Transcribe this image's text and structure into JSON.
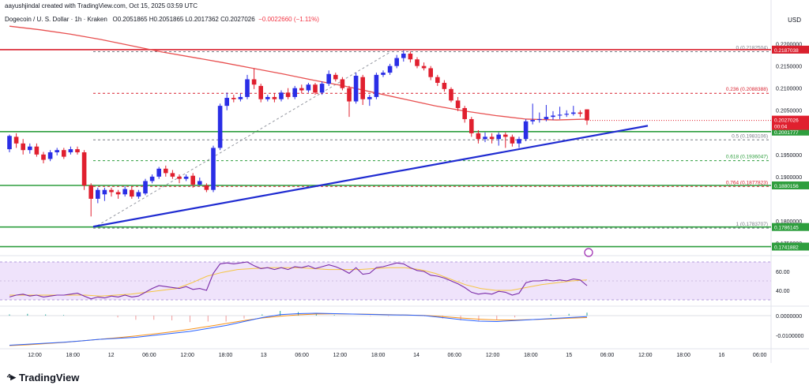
{
  "credit": "aayushjindal created with TradingView.com, Oct 15, 2025 03:59 UTC",
  "header": {
    "symbol": "Dogecoin / U. S. Dollar · 1h · Kraken",
    "ohlc": "O0.2051865 H0.2051865 L0.2017362 C0.2027026",
    "change": "−0.0022660 (−1.11%)"
  },
  "currency": "USD",
  "brand": "TradingView",
  "colors": {
    "up": "#2a2ee6",
    "down": "#e0202f",
    "ma": "#e85050",
    "trendline": "#1f2bd1",
    "support": "#2e9e3e",
    "resistance": "#d9202e",
    "rsi": "#7b2ca8",
    "rsi_band": "#efe3fb"
  },
  "chart_data": {
    "type": "candlestick",
    "price_axis": {
      "range": [
        0.1725,
        0.2235
      ],
      "ticks": [
        "0.2200000",
        "0.2150000",
        "0.2100000",
        "0.2050000",
        "0.1950000",
        "0.1900000",
        "0.1800000",
        "0.1750000"
      ]
    },
    "time_ticks": [
      "12:00",
      "18:00",
      "12",
      "06:00",
      "12:00",
      "18:00",
      "13",
      "06:00",
      "12:00",
      "18:00",
      "14",
      "06:00",
      "12:00",
      "18:00",
      "15",
      "06:00",
      "12:00",
      "18:00",
      "16",
      "06:00"
    ],
    "candles": [
      [
        0.1962,
        0.1992,
        0.1995,
        0.1955
      ],
      [
        0.199,
        0.1975,
        0.1998,
        0.1965
      ],
      [
        0.1975,
        0.196,
        0.1985,
        0.195
      ],
      [
        0.196,
        0.1968,
        0.1975,
        0.1952
      ],
      [
        0.1968,
        0.195,
        0.1975,
        0.1945
      ],
      [
        0.195,
        0.1938,
        0.1956,
        0.193
      ],
      [
        0.194,
        0.1955,
        0.196,
        0.1935
      ],
      [
        0.1955,
        0.196,
        0.1965,
        0.1948
      ],
      [
        0.196,
        0.1945,
        0.1965,
        0.194
      ],
      [
        0.1955,
        0.1962,
        0.1968,
        0.195
      ],
      [
        0.1962,
        0.1955,
        0.1968,
        0.195
      ],
      [
        0.1955,
        0.188,
        0.196,
        0.187
      ],
      [
        0.188,
        0.185,
        0.1885,
        0.181
      ],
      [
        0.185,
        0.187,
        0.1875,
        0.184
      ],
      [
        0.186,
        0.187,
        0.1875,
        0.1845
      ],
      [
        0.187,
        0.1865,
        0.1875,
        0.1855
      ],
      [
        0.1865,
        0.186,
        0.187,
        0.185
      ],
      [
        0.186,
        0.1872,
        0.1878,
        0.1855
      ],
      [
        0.187,
        0.1855,
        0.1878,
        0.185
      ],
      [
        0.1855,
        0.1865,
        0.187,
        0.185
      ],
      [
        0.1862,
        0.189,
        0.1895,
        0.1858
      ],
      [
        0.189,
        0.19,
        0.1905,
        0.1885
      ],
      [
        0.19,
        0.1918,
        0.1922,
        0.1895
      ],
      [
        0.1918,
        0.1908,
        0.1925,
        0.19
      ],
      [
        0.1908,
        0.19,
        0.1915,
        0.1895
      ],
      [
        0.19,
        0.1895,
        0.1905,
        0.1885
      ],
      [
        0.1895,
        0.19,
        0.1905,
        0.189
      ],
      [
        0.1902,
        0.1882,
        0.1908,
        0.1875
      ],
      [
        0.1882,
        0.189,
        0.1898,
        0.188
      ],
      [
        0.188,
        0.187,
        0.1885,
        0.1865
      ],
      [
        0.187,
        0.1965,
        0.197,
        0.1865
      ],
      [
        0.1965,
        0.206,
        0.2065,
        0.196
      ],
      [
        0.206,
        0.2078,
        0.209,
        0.205
      ],
      [
        0.2078,
        0.2075,
        0.2085,
        0.2068
      ],
      [
        0.2075,
        0.208,
        0.2088,
        0.207
      ],
      [
        0.208,
        0.212,
        0.213,
        0.2075
      ],
      [
        0.212,
        0.2108,
        0.2145,
        0.2098
      ],
      [
        0.2105,
        0.2075,
        0.211,
        0.2068
      ],
      [
        0.2075,
        0.208,
        0.2085,
        0.207
      ],
      [
        0.208,
        0.2075,
        0.2088,
        0.2068
      ],
      [
        0.2075,
        0.209,
        0.2095,
        0.207
      ],
      [
        0.209,
        0.208,
        0.21,
        0.2075
      ],
      [
        0.208,
        0.21,
        0.2105,
        0.2075
      ],
      [
        0.21,
        0.2095,
        0.2108,
        0.2088
      ],
      [
        0.2095,
        0.2108,
        0.2112,
        0.209
      ],
      [
        0.2108,
        0.209,
        0.2112,
        0.2085
      ],
      [
        0.209,
        0.211,
        0.2115,
        0.2085
      ],
      [
        0.211,
        0.2132,
        0.214,
        0.2105
      ],
      [
        0.213,
        0.212,
        0.2135,
        0.2115
      ],
      [
        0.212,
        0.21,
        0.2125,
        0.2095
      ],
      [
        0.21,
        0.207,
        0.2105,
        0.2035
      ],
      [
        0.207,
        0.2128,
        0.2135,
        0.2065
      ],
      [
        0.2125,
        0.2075,
        0.213,
        0.2062
      ],
      [
        0.2075,
        0.208,
        0.2085,
        0.206
      ],
      [
        0.208,
        0.213,
        0.2135,
        0.2075
      ],
      [
        0.213,
        0.2135,
        0.214,
        0.2125
      ],
      [
        0.2135,
        0.215,
        0.2155,
        0.213
      ],
      [
        0.215,
        0.2168,
        0.2175,
        0.2145
      ],
      [
        0.2168,
        0.2178,
        0.2185,
        0.216
      ],
      [
        0.2178,
        0.2165,
        0.2183,
        0.2158
      ],
      [
        0.2165,
        0.215,
        0.217,
        0.2145
      ],
      [
        0.215,
        0.2145,
        0.2158,
        0.214
      ],
      [
        0.2145,
        0.2125,
        0.215,
        0.2118
      ],
      [
        0.2125,
        0.2112,
        0.213,
        0.2105
      ],
      [
        0.2112,
        0.2098,
        0.2118,
        0.2092
      ],
      [
        0.2098,
        0.2072,
        0.2102,
        0.2068
      ],
      [
        0.2072,
        0.2055,
        0.208,
        0.2048
      ],
      [
        0.2055,
        0.203,
        0.206,
        0.2022
      ],
      [
        0.203,
        0.1998,
        0.2035,
        0.199
      ],
      [
        0.1998,
        0.1985,
        0.2005,
        0.1975
      ],
      [
        0.1985,
        0.199,
        0.2,
        0.1978
      ],
      [
        0.199,
        0.1985,
        0.1998,
        0.1975
      ],
      [
        0.1985,
        0.1995,
        0.2,
        0.197
      ],
      [
        0.1995,
        0.199,
        0.2,
        0.1965
      ],
      [
        0.199,
        0.1975,
        0.1995,
        0.1968
      ],
      [
        0.1975,
        0.1985,
        0.199,
        0.1965
      ],
      [
        0.1985,
        0.2025,
        0.203,
        0.198
      ],
      [
        0.2025,
        0.2028,
        0.2065,
        0.2018
      ],
      [
        0.2028,
        0.203,
        0.2045,
        0.2022
      ],
      [
        0.203,
        0.2035,
        0.2062,
        0.2025
      ],
      [
        0.2035,
        0.2038,
        0.2048,
        0.2028
      ],
      [
        0.2038,
        0.204,
        0.2058,
        0.203
      ],
      [
        0.204,
        0.2042,
        0.205,
        0.2035
      ],
      [
        0.2042,
        0.2045,
        0.206,
        0.2038
      ],
      [
        0.2045,
        0.2042,
        0.205,
        0.2035
      ],
      [
        0.2052,
        0.2027,
        0.2052,
        0.2017
      ]
    ],
    "ma_line": [
      0.224,
      0.2232,
      0.2222,
      0.221,
      0.2196,
      0.2182,
      0.217,
      0.2158,
      0.2145,
      0.2132,
      0.2118,
      0.2105,
      0.209,
      0.2075,
      0.206,
      0.2048,
      0.2038,
      0.203,
      0.2028,
      0.203
    ],
    "horizontal_levels": [
      {
        "value": 0.2187038,
        "label": "0.2187038",
        "kind": "resistance"
      },
      {
        "value": 0.2001777,
        "label": "0.2001777",
        "kind": "support"
      },
      {
        "value": 0.1880156,
        "label": "0.1880156",
        "kind": "support"
      },
      {
        "value": 0.1786145,
        "label": "0.1786145",
        "kind": "support"
      },
      {
        "value": 0.1741882,
        "label": "0.1741882",
        "kind": "support"
      }
    ],
    "current_price": {
      "value": 0.2027026,
      "label": "0.2027026",
      "timer": "00:04"
    },
    "fib_levels": [
      {
        "ratio": "0",
        "value": 0.2182504,
        "label": "0 (0.2182504)"
      },
      {
        "ratio": "0.236",
        "value": 0.2088388,
        "label": "0.236 (0.2088388)"
      },
      {
        "ratio": "0.5",
        "value": 0.1983106,
        "label": "0.5 (0.1983106)"
      },
      {
        "ratio": "0.618",
        "value": 0.1936047,
        "label": "0.618 (0.1936047)"
      },
      {
        "ratio": "0.764",
        "value": 0.1877823,
        "label": "0.764 (0.1877823)"
      },
      {
        "ratio": "1",
        "value": 0.1783707,
        "label": "1 (0.1783707)"
      }
    ],
    "trendline": {
      "from": 0.1787,
      "to": 0.2015
    },
    "rsi": {
      "ticks": [
        "60.00",
        "40.00"
      ],
      "band": [
        30,
        70
      ],
      "values": [
        33,
        35,
        36,
        34,
        35,
        33,
        34,
        35,
        35,
        36,
        37,
        34,
        31,
        33,
        32,
        34,
        33,
        35,
        33,
        34,
        38,
        42,
        45,
        44,
        43,
        42,
        44,
        41,
        42,
        40,
        58,
        68,
        69,
        68,
        69,
        70,
        66,
        63,
        64,
        62,
        64,
        62,
        65,
        64,
        66,
        63,
        65,
        67,
        65,
        62,
        58,
        64,
        57,
        58,
        64,
        65,
        67,
        69,
        68,
        64,
        61,
        60,
        56,
        55,
        53,
        50,
        47,
        43,
        38,
        36,
        37,
        36,
        39,
        38,
        35,
        37,
        48,
        50,
        50,
        51,
        50,
        51,
        50,
        52,
        51,
        45
      ],
      "signal": [
        35,
        35,
        35,
        35,
        35,
        35,
        34,
        35,
        36,
        38,
        40,
        42,
        48,
        55,
        59,
        62,
        63,
        64,
        64,
        64,
        63,
        62,
        62,
        62,
        63,
        64,
        64,
        62,
        58,
        52,
        46,
        42,
        40,
        40,
        43,
        46,
        48,
        50,
        51
      ]
    },
    "macd": {
      "ticks": [
        "0.0000000",
        "-0.0100000"
      ],
      "macd": [
        -0.015,
        -0.0145,
        -0.014,
        -0.0135,
        -0.0128,
        -0.012,
        -0.0115,
        -0.011,
        -0.01,
        -0.009,
        -0.008,
        -0.0065,
        -0.005,
        -0.003,
        -0.001,
        0.0005,
        0.001,
        0.0012,
        0.001,
        0.0008,
        0.0006,
        0.0004,
        0.0003,
        0.0,
        -0.001,
        -0.002,
        -0.0028,
        -0.003,
        -0.0025,
        -0.002,
        -0.0015,
        -0.001,
        -0.0005
      ],
      "signal": [
        -0.0152,
        -0.0148,
        -0.0142,
        -0.0136,
        -0.0128,
        -0.012,
        -0.0112,
        -0.0103,
        -0.0093,
        -0.0082,
        -0.0069,
        -0.0055,
        -0.004,
        -0.0025,
        -0.0012,
        -0.0003,
        0.0004,
        0.0008,
        0.0009,
        0.0008,
        0.0007,
        0.0005,
        0.0003,
        0.0001,
        -0.0005,
        -0.0012,
        -0.0018,
        -0.0022,
        -0.0022,
        -0.002,
        -0.0017,
        -0.0013,
        -0.001
      ]
    }
  }
}
